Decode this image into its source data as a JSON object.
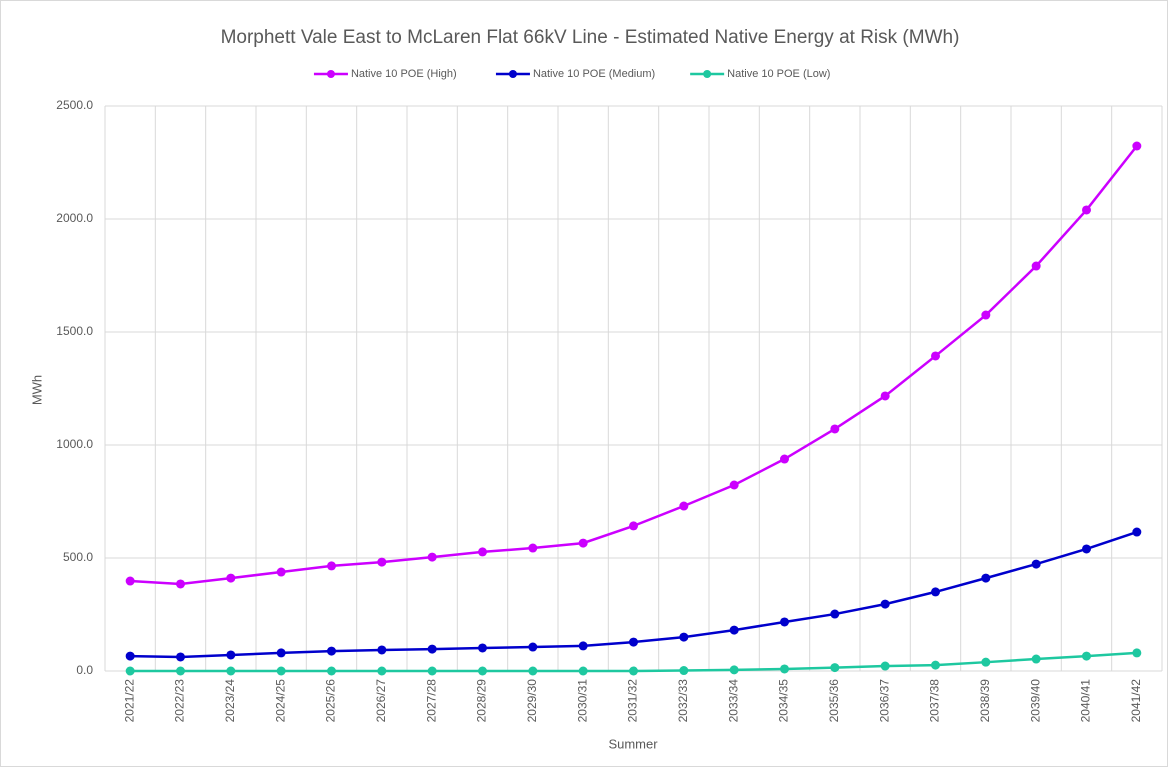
{
  "chart_data": {
    "type": "line",
    "title": "Morphett Vale East to McLaren Flat 66kV Line - Estimated Native Energy at Risk (MWh)",
    "x_label": "Summer",
    "y_label": "MWh",
    "categories": [
      "2021/22",
      "2022/23",
      "2023/24",
      "2024/25",
      "2025/26",
      "2026/27",
      "2027/28",
      "2028/29",
      "2029/30",
      "2030/31",
      "2031/32",
      "2032/33",
      "2033/34",
      "2034/35",
      "2035/36",
      "2036/37",
      "2037/38",
      "2038/39",
      "2039/40",
      "2040/41",
      "2041/42"
    ],
    "series": [
      {
        "name": "Native 10 POE (High)",
        "color": "#cc00ff",
        "values": [
          398,
          385,
          411,
          438,
          465,
          482,
          504,
          527,
          544,
          566,
          642,
          730,
          823,
          938,
          1071,
          1217,
          1394,
          1575,
          1792,
          2040,
          2323
        ]
      },
      {
        "name": "Native 10 POE (Medium)",
        "color": "#0000cc",
        "values": [
          66,
          62,
          71,
          80,
          88,
          93,
          97,
          102,
          106,
          111,
          128,
          150,
          181,
          217,
          252,
          296,
          350,
          411,
          473,
          540,
          615
        ]
      },
      {
        "name": "Native 10 POE (Low)",
        "color": "#1ec8a0",
        "values": [
          0,
          0,
          0,
          0,
          0,
          0,
          0,
          0,
          0,
          0,
          0,
          2,
          5,
          9,
          15,
          22,
          26,
          39,
          53,
          66,
          80
        ]
      }
    ],
    "ylim": [
      0,
      2500
    ],
    "yticks": [
      {
        "value": 0,
        "label": "0.0"
      },
      {
        "value": 500,
        "label": "500.0"
      },
      {
        "value": 1000,
        "label": "1000.0"
      },
      {
        "value": 1500,
        "label": "1500.0"
      },
      {
        "value": 2000,
        "label": "2000.0"
      },
      {
        "value": 2500,
        "label": "2500.0"
      }
    ],
    "grid": true,
    "legend": "top"
  }
}
